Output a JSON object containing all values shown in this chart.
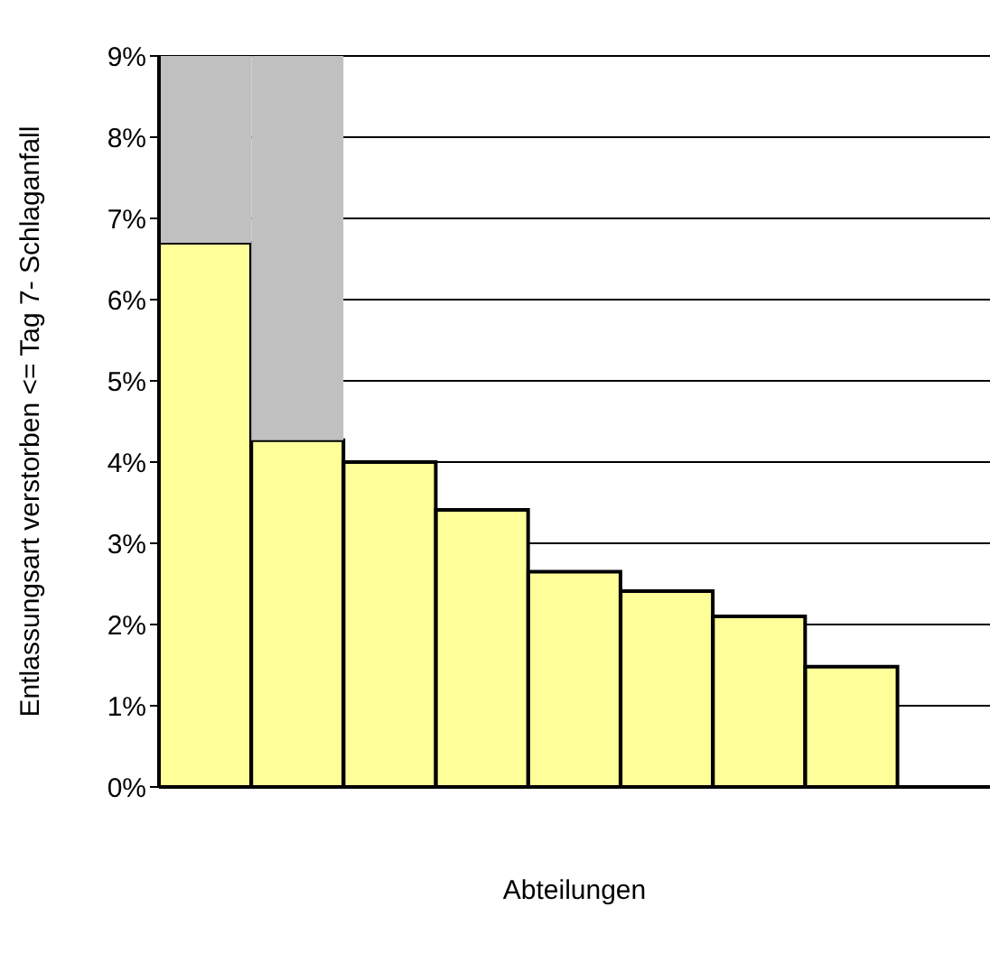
{
  "chart_data": {
    "type": "bar",
    "stacked": true,
    "xlabel": "Abteilungen",
    "ylabel": "Entlassungsart verstorben <= Tag 7- Schlaganfall",
    "categories": [
      null,
      null,
      null,
      null,
      null,
      null,
      null,
      null,
      null
    ],
    "series": [
      {
        "color": "#ffff99",
        "values": [
          6.7,
          4.27,
          4.0,
          3.41,
          2.65,
          2.41,
          2.1,
          1.48,
          null
        ]
      },
      {
        "color": "#c0c0c0",
        "values": [
          2.3,
          4.73,
          null,
          null,
          null,
          null,
          null,
          null,
          null
        ]
      }
    ],
    "ylim": [
      0,
      9
    ],
    "yticks": [
      {
        "value": 0,
        "label": "0%"
      },
      {
        "value": 1,
        "label": "1%"
      },
      {
        "value": 2,
        "label": "2%"
      },
      {
        "value": 3,
        "label": "3%"
      },
      {
        "value": 4,
        "label": "4%"
      },
      {
        "value": 5,
        "label": "5%"
      },
      {
        "value": 6,
        "label": "6%"
      },
      {
        "value": 7,
        "label": "7%"
      },
      {
        "value": 8,
        "label": "8%"
      },
      {
        "value": 9,
        "label": "9%"
      }
    ],
    "grid": "y"
  }
}
